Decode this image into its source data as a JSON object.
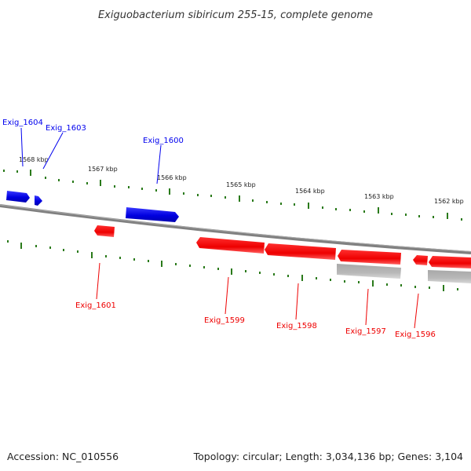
{
  "title": "Exiguobacterium sibiricum 255-15, complete genome",
  "footer": {
    "accession": "Accession: NC_010556",
    "topology": "Topology: circular; Length: 3,034,136 bp; Genes: 3,104"
  },
  "scale_labels": [
    "1568 kbp",
    "1567 kbp",
    "1566 kbp",
    "1565 kbp",
    "1564 kbp",
    "1563 kbp",
    "1562 kbp"
  ],
  "genes": {
    "forward": [
      "Exig_1604",
      "Exig_1603",
      "Exig_1600"
    ],
    "reverse": [
      "Exig_1601",
      "Exig_1599",
      "Exig_1598",
      "Exig_1597",
      "Exig_1596"
    ]
  },
  "colors": {
    "forward_strand": "#0000ee",
    "reverse_strand": "#ee0000",
    "other_feature": "#b0b0b0",
    "backbone": "#808080",
    "tick": "#2a7a1a"
  }
}
